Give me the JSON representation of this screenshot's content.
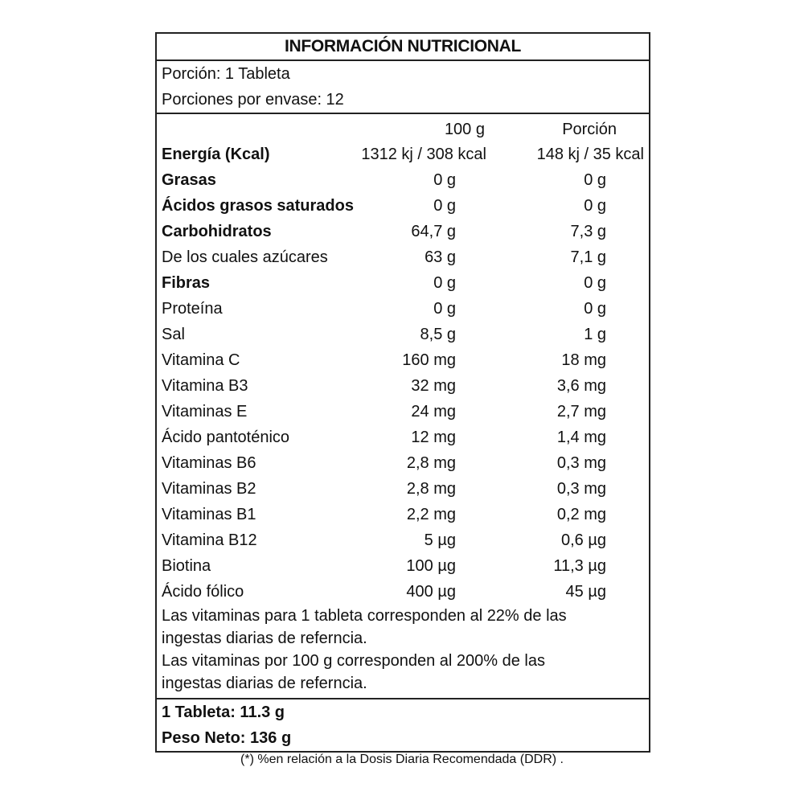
{
  "title": "INFORMACIÓN NUTRICIONAL",
  "serving": "Porción:  1 Tableta",
  "servings_per_container": "Porciones por envase: 12",
  "columns": {
    "per100": "100  g",
    "portion": "Porción"
  },
  "rows": [
    {
      "name": "Energía (Kcal)",
      "per100": "1312 kj / 308 kcal",
      "portion": "148 kj / 35 kcal",
      "bold": true
    },
    {
      "name": "Grasas",
      "per100": "0 g",
      "portion": "0 g",
      "bold": true
    },
    {
      "name": "Ácidos grasos saturados",
      "per100": "0 g",
      "portion": "0 g",
      "bold": true
    },
    {
      "name": "Carbohidratos",
      "per100": "64,7 g",
      "portion": "7,3 g",
      "bold": true
    },
    {
      "name": "De los cuales azúcares",
      "per100": "63 g",
      "portion": "7,1 g"
    },
    {
      "name": "Fibras",
      "per100": "0 g",
      "portion": "0 g",
      "bold": true
    },
    {
      "name": "Proteína",
      "per100": "0 g",
      "portion": "0 g"
    },
    {
      "name": "Sal",
      "per100": "8,5 g",
      "portion": "1 g"
    },
    {
      "name": "Vitamina C",
      "per100": "160 mg",
      "portion": "18 mg"
    },
    {
      "name": "Vitamina B3",
      "per100": "32 mg",
      "portion": "3,6 mg"
    },
    {
      "name": "Vitaminas E",
      "per100": "24 mg",
      "portion": "2,7 mg"
    },
    {
      "name": "Ácido pantoténico",
      "per100": "12 mg",
      "portion": "1,4 mg"
    },
    {
      "name": "Vitaminas B6",
      "per100": "2,8 mg",
      "portion": "0,3 mg"
    },
    {
      "name": "Vitaminas B2",
      "per100": "2,8 mg",
      "portion": "0,3 mg"
    },
    {
      "name": "Vitaminas B1",
      "per100": "2,2 mg",
      "portion": "0,2 mg"
    },
    {
      "name": "Vitamina B12",
      "per100": "5 µg",
      "portion": "0,6 µg"
    },
    {
      "name": "Biotina",
      "per100": "100 µg",
      "portion": "11,3 µg"
    },
    {
      "name": "Ácido fólico",
      "per100": "400 µg",
      "portion": "45 µg"
    }
  ],
  "notes": [
    "Las vitaminas para 1 tableta corresponden al 22% de las",
    "ingestas diarias de referncia.",
    "Las vitaminas por 100 g corresponden al 200% de las",
    "ingestas diarias de referncia."
  ],
  "tablet_weight": "1 Tableta: 11.3 g",
  "net_weight": "Peso Neto: 136 g",
  "footnote": "(*) %en relación a la Dosis Diaria Recomendada (DDR) ."
}
